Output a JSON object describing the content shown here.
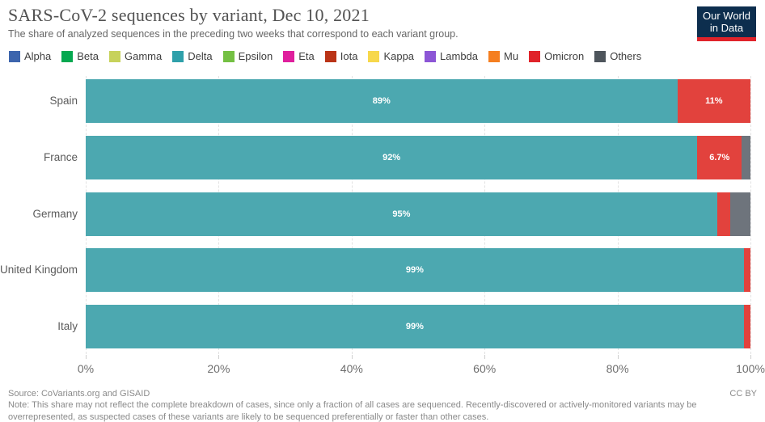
{
  "header": {
    "title": "SARS-CoV-2 sequences by variant, Dec 10, 2021",
    "subtitle": "The share of analyzed sequences in the preceding two weeks that correspond to each variant group.",
    "logo": {
      "line1": "Our World",
      "line2": "in Data",
      "bg_color": "#0d2e4e",
      "accent_color": "#e0232a"
    }
  },
  "legend": {
    "items": [
      {
        "label": "Alpha",
        "color": "#3d65ad"
      },
      {
        "label": "Beta",
        "color": "#05a850"
      },
      {
        "label": "Gamma",
        "color": "#c7d25b"
      },
      {
        "label": "Delta",
        "color": "#2fa0aa"
      },
      {
        "label": "Epsilon",
        "color": "#74c043"
      },
      {
        "label": "Eta",
        "color": "#df1f9d"
      },
      {
        "label": "Iota",
        "color": "#ba3417"
      },
      {
        "label": "Kappa",
        "color": "#f7d84b"
      },
      {
        "label": "Lambda",
        "color": "#8c56d6"
      },
      {
        "label": "Mu",
        "color": "#f57f20"
      },
      {
        "label": "Omicron",
        "color": "#e0232a"
      },
      {
        "label": "Others",
        "color": "#4e555c"
      }
    ]
  },
  "chart_data": {
    "type": "bar",
    "orientation": "horizontal",
    "stacked": true,
    "unit": "%",
    "title": "SARS-CoV-2 sequences by variant, Dec 10, 2021",
    "xlabel": "",
    "ylabel": "",
    "xlim": [
      0,
      100
    ],
    "grid": "dashed-vertical",
    "legend_position": "top",
    "categories": [
      "Spain",
      "France",
      "Germany",
      "United Kingdom",
      "Italy"
    ],
    "x_ticks": [
      {
        "value": 0,
        "label": "0%"
      },
      {
        "value": 20,
        "label": "20%"
      },
      {
        "value": 40,
        "label": "40%"
      },
      {
        "value": 60,
        "label": "60%"
      },
      {
        "value": 80,
        "label": "80%"
      },
      {
        "value": 100,
        "label": "100%"
      }
    ],
    "series": [
      {
        "name": "Delta",
        "color": "#4ca8b0",
        "values": [
          89,
          92,
          95,
          99,
          99
        ],
        "bar_labels": [
          "89%",
          "92%",
          "95%",
          "99%",
          "99%"
        ]
      },
      {
        "name": "Omicron",
        "color": "#e2423d",
        "values": [
          11,
          6.7,
          2,
          1,
          1
        ],
        "bar_labels": [
          "11%",
          "6.7%",
          "",
          "",
          ""
        ]
      },
      {
        "name": "Others",
        "color": "#6e747c",
        "values": [
          0,
          1.3,
          3,
          0,
          0
        ],
        "bar_labels": [
          "",
          "",
          "",
          "",
          ""
        ]
      }
    ]
  },
  "footer": {
    "source": "Source: CoVariants.org and GISAID",
    "license": "CC BY",
    "note": "Note: This share may not reflect the complete breakdown of cases, since only a fraction of all cases are sequenced. Recently-discovered or actively-monitored variants may be overrepresented, as suspected cases of these variants are likely to be sequenced preferentially or faster than other cases."
  }
}
